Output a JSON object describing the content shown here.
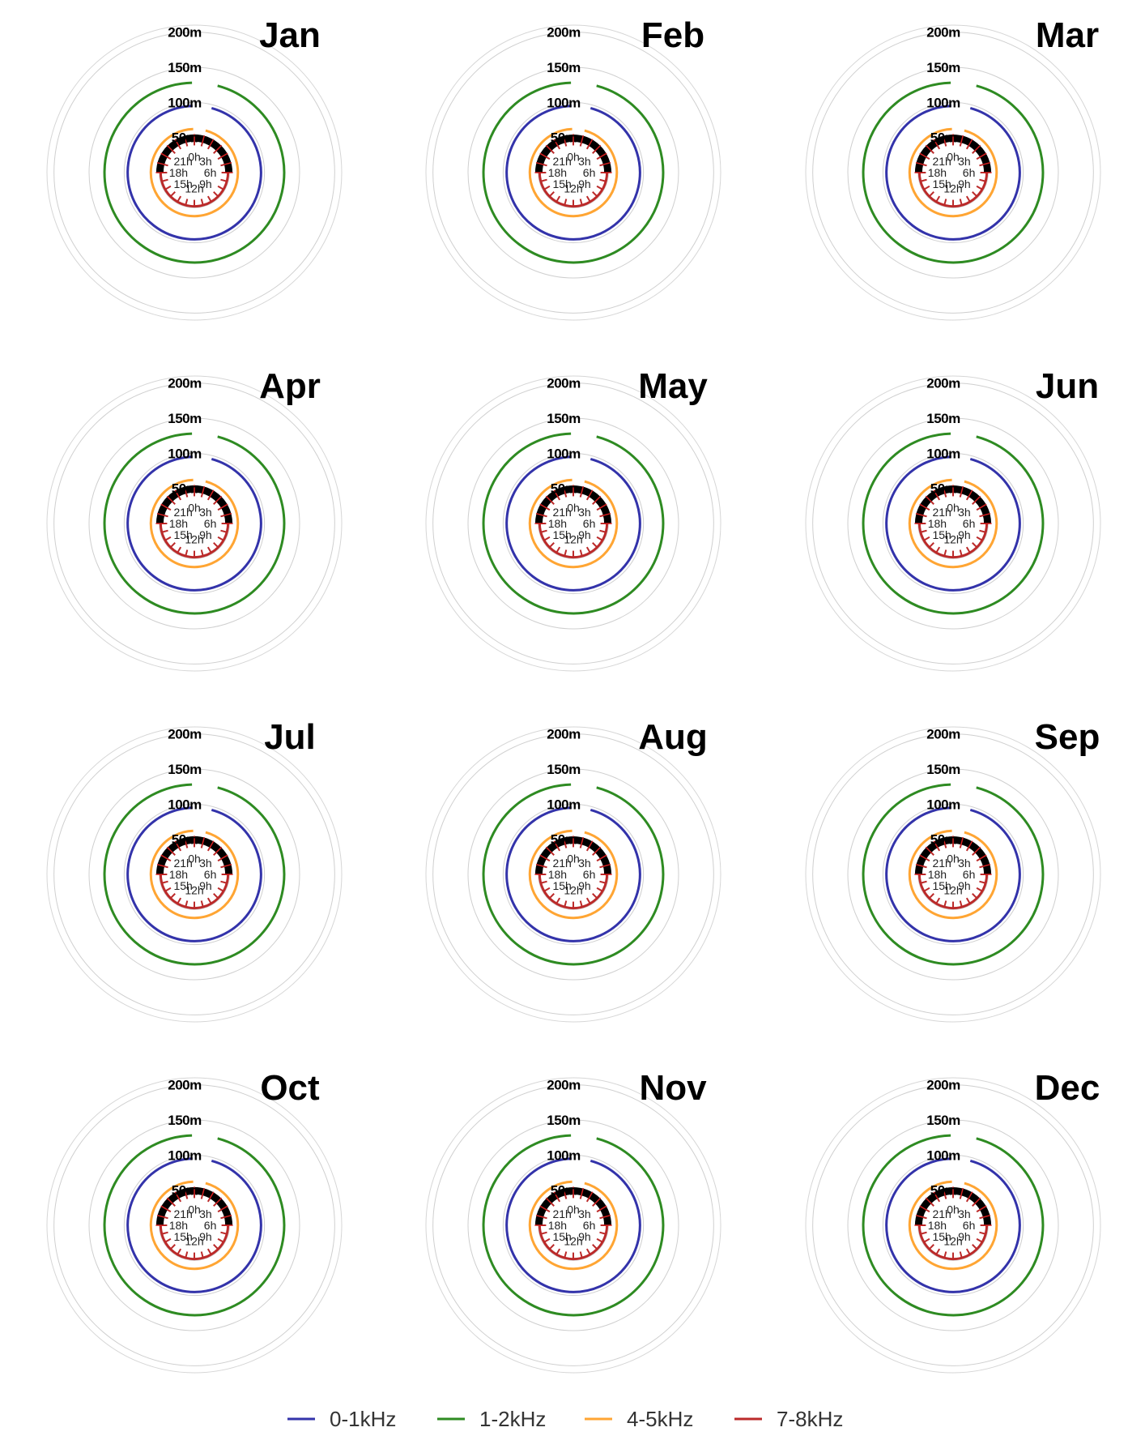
{
  "chart_data": {
    "type": "polar-line-small-multiples",
    "panels": [
      "Jan",
      "Feb",
      "Mar",
      "Apr",
      "May",
      "Jun",
      "Jul",
      "Aug",
      "Sep",
      "Oct",
      "Nov",
      "Dec"
    ],
    "radial_axis": {
      "unit": "m",
      "ticks": [
        50,
        100,
        150,
        200
      ],
      "tick_labels": [
        "50m",
        "100m",
        "150m",
        "200m"
      ],
      "rmax": 210
    },
    "angular_axis": {
      "tick_labels": [
        "0h",
        "3h",
        "6h",
        "9h",
        "12h",
        "15h",
        "18h",
        "21h"
      ],
      "tick_hours": [
        0,
        3,
        6,
        9,
        12,
        15,
        18,
        21
      ],
      "range_hours": [
        0,
        24
      ]
    },
    "hours": [
      0,
      1,
      2,
      3,
      4,
      5,
      6,
      7,
      8,
      9,
      10,
      11,
      12,
      13,
      14,
      15,
      16,
      17,
      18,
      19,
      20,
      21,
      22,
      23
    ],
    "series": [
      {
        "name": "0-1kHz",
        "color": "#3333aa",
        "value": 95
      },
      {
        "name": "1-2kHz",
        "color": "#2e8b22",
        "value": 128
      },
      {
        "name": "4-5kHz",
        "color": "#ffa533",
        "value": 62
      },
      {
        "name": "7-8kHz",
        "color": "#bb2a2a",
        "value": 48
      }
    ],
    "night_marker": {
      "color": "#000000",
      "hours_from": 18,
      "hours_to": 6
    },
    "legend": {
      "position": "bottom",
      "entries": [
        "0-1kHz",
        "1-2kHz",
        "4-5kHz",
        "7-8kHz"
      ]
    },
    "grid": true
  }
}
